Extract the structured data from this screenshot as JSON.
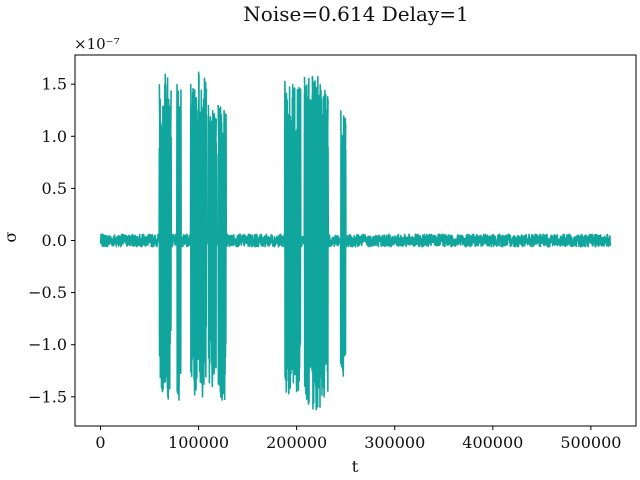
{
  "chart_data": {
    "type": "line",
    "title": "Noise=0.614 Delay=1",
    "xlabel": "t",
    "ylabel": "σ",
    "y_offset_label": "×10⁻⁷",
    "y_scale": 1e-07,
    "xlim": [
      -26000,
      546000
    ],
    "ylim": [
      -1.78,
      1.78
    ],
    "xticks": [
      0,
      100000,
      200000,
      300000,
      400000,
      500000
    ],
    "xtick_labels": [
      "0",
      "100000",
      "200000",
      "300000",
      "400000",
      "500000"
    ],
    "yticks": [
      -1.5,
      -1.0,
      -0.5,
      0.0,
      0.5,
      1.0,
      1.5
    ],
    "ytick_labels": [
      "−1.5",
      "−1.0",
      "−0.5",
      "0.0",
      "0.5",
      "1.0",
      "1.5"
    ],
    "grid": false,
    "legend": "none",
    "color": "#10a59d",
    "baseline_noise_amplitude": 0.06,
    "x_extent": [
      0,
      520000
    ],
    "series": [
      {
        "bursts": [
          {
            "x_start": 60000,
            "x_end": 66000,
            "y_max": 1.5,
            "y_min": -1.45
          },
          {
            "x_start": 66000,
            "x_end": 72000,
            "y_max": 1.6,
            "y_min": -1.52
          },
          {
            "x_start": 78000,
            "x_end": 82000,
            "y_max": 1.5,
            "y_min": -1.53
          },
          {
            "x_start": 92000,
            "x_end": 100000,
            "y_max": 1.5,
            "y_min": -1.48
          },
          {
            "x_start": 100000,
            "x_end": 108000,
            "y_max": 1.62,
            "y_min": -1.5
          },
          {
            "x_start": 110000,
            "x_end": 118000,
            "y_max": 1.3,
            "y_min": -1.4
          },
          {
            "x_start": 120000,
            "x_end": 128000,
            "y_max": 1.3,
            "y_min": -1.53
          },
          {
            "x_start": 188000,
            "x_end": 196000,
            "y_max": 1.53,
            "y_min": -1.47
          },
          {
            "x_start": 196000,
            "x_end": 204000,
            "y_max": 1.5,
            "y_min": -1.45
          },
          {
            "x_start": 208000,
            "x_end": 216000,
            "y_max": 1.57,
            "y_min": -1.57
          },
          {
            "x_start": 216000,
            "x_end": 224000,
            "y_max": 1.58,
            "y_min": -1.62
          },
          {
            "x_start": 224000,
            "x_end": 232000,
            "y_max": 1.5,
            "y_min": -1.5
          },
          {
            "x_start": 245000,
            "x_end": 250000,
            "y_max": 1.25,
            "y_min": -1.3
          }
        ]
      }
    ]
  }
}
